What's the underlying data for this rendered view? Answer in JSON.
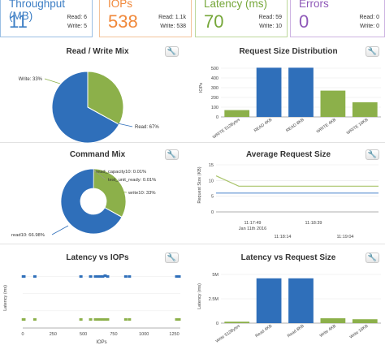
{
  "kpis": [
    {
      "title": "Throughput (MB)",
      "value": "11",
      "sub1": "Read: 6",
      "sub2": "Write: 5",
      "color": "#3b7dc4",
      "border": "#9bbfe4"
    },
    {
      "title": "IOPs",
      "value": "538",
      "sub1": "Read: 1.1k",
      "sub2": "Write: 538",
      "color": "#f0883a",
      "border": "#f3c39b"
    },
    {
      "title": "Latency (ms)",
      "value": "70",
      "sub1": "Read: 59",
      "sub2": "Write: 10",
      "color": "#76a73a",
      "border": "#bdd89b"
    },
    {
      "title": "Errors",
      "value": "0",
      "sub1": "Read: 0",
      "sub2": "Write: 0",
      "color": "#8e58b8",
      "border": "#cdb3e2"
    }
  ],
  "panels": {
    "rw_mix": "Read / Write Mix",
    "req_size": "Request Size Distribution",
    "cmd_mix": "Command Mix",
    "avg_req": "Average Request Size",
    "lat_iops": "Latency vs IOPs",
    "lat_req": "Latency vs Request Size"
  },
  "wrench_glyph": "🔧",
  "colors": {
    "blue": "#2f6fba",
    "green": "#8cb04a",
    "line_blue": "#5b8fd0",
    "line_green": "#a9c46a"
  },
  "chart_data": [
    {
      "type": "pie",
      "title": "Read / Write Mix",
      "slices": [
        {
          "label": "Read: 67%",
          "value": 67,
          "color": "#2f6fba"
        },
        {
          "label": "Write: 33%",
          "value": 33,
          "color": "#8cb04a"
        }
      ]
    },
    {
      "type": "bar",
      "title": "Request Size Distribution",
      "ylabel": "IOPs",
      "ylim": [
        0,
        600
      ],
      "yticks": [
        "0",
        "100",
        "200",
        "300",
        "400",
        "500"
      ],
      "categories": [
        "WRITE 512Bytes",
        "READ 4KB",
        "READ 8KB",
        "WRITE 4KB",
        "WRITE 16KB"
      ],
      "values": [
        70,
        505,
        505,
        270,
        150
      ],
      "colors": [
        "#8cb04a",
        "#2f6fba",
        "#2f6fba",
        "#8cb04a",
        "#8cb04a"
      ]
    },
    {
      "type": "pie",
      "title": "Command Mix",
      "donut": true,
      "slices": [
        {
          "label": "read10: 66.98%",
          "value": 66.98,
          "color": "#2f6fba"
        },
        {
          "label": "write10: 33%",
          "value": 33.0,
          "color": "#8cb04a"
        },
        {
          "label": "read_capacity10: 0.01%",
          "value": 0.01,
          "color": "#e0a040"
        },
        {
          "label": "test_unit_ready: 0.01%",
          "value": 0.01,
          "color": "#c05050"
        }
      ]
    },
    {
      "type": "line",
      "title": "Average Request Size",
      "ylabel": "Request Size (KB)",
      "ylim": [
        0,
        15
      ],
      "yticks": [
        "0",
        "5",
        "10",
        "15"
      ],
      "xticks_top": [
        "11:17:49",
        "11:18:39"
      ],
      "xticks_bottom": [
        "11:18:14",
        "11:19:04"
      ],
      "date_label": "Jan 11th 2016",
      "series": [
        {
          "values": [
            11.5,
            8.2,
            8.2,
            8.2,
            8.2
          ],
          "color": "#a9c46a"
        },
        {
          "values": [
            6.0,
            6.0,
            6.0,
            6.0,
            6.0
          ],
          "color": "#5b8fd0"
        }
      ]
    },
    {
      "type": "scatter",
      "title": "Latency vs IOPs",
      "ylabel": "Latency (ms)",
      "xlabel": "IOPs",
      "xticks": [
        "0",
        "250",
        "500",
        "750",
        "1000",
        "1250"
      ],
      "xlim": [
        0,
        1300
      ],
      "ylim": [
        0,
        70
      ],
      "series": [
        {
          "color": "#2f6fba",
          "points": [
            [
              5,
              60
            ],
            [
              10,
              60
            ],
            [
              100,
              60
            ],
            [
              480,
              60
            ],
            [
              560,
              60
            ],
            [
              600,
              60
            ],
            [
              620,
              60
            ],
            [
              640,
              60
            ],
            [
              660,
              60
            ],
            [
              680,
              61
            ],
            [
              700,
              60
            ],
            [
              850,
              60
            ],
            [
              880,
              60
            ],
            [
              1270,
              60
            ],
            [
              1290,
              60
            ]
          ]
        },
        {
          "color": "#8cb04a",
          "points": [
            [
              5,
              10
            ],
            [
              10,
              10
            ],
            [
              100,
              10
            ],
            [
              480,
              10
            ],
            [
              560,
              10
            ],
            [
              600,
              10
            ],
            [
              620,
              10
            ],
            [
              640,
              10
            ],
            [
              660,
              10
            ],
            [
              680,
              10
            ],
            [
              700,
              10
            ],
            [
              850,
              10
            ],
            [
              880,
              10
            ],
            [
              1270,
              10
            ],
            [
              1290,
              10
            ]
          ]
        }
      ]
    },
    {
      "type": "bar",
      "title": "Latency vs Request Size",
      "ylabel": "Latency (ms)",
      "ylim": [
        0,
        5500000
      ],
      "yticks": [
        "0",
        "2.5M",
        "5M"
      ],
      "categories": [
        "Write 512Bytes",
        "Read 4KB",
        "Read 8KB",
        "Write 4KB",
        "Write 16KB"
      ],
      "values": [
        150000,
        4600000,
        4600000,
        500000,
        400000
      ],
      "colors": [
        "#8cb04a",
        "#2f6fba",
        "#2f6fba",
        "#8cb04a",
        "#8cb04a"
      ]
    }
  ]
}
